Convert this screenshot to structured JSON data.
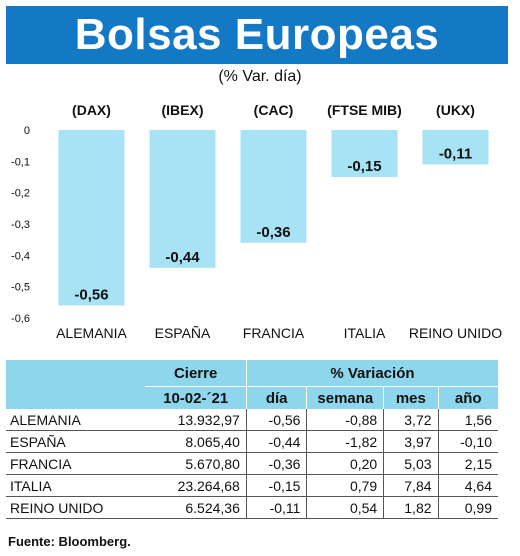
{
  "title": "Bolsas Europeas",
  "subtitle": "(% Var. día)",
  "chart_data": {
    "type": "bar",
    "categories": [
      "ALEMANIA",
      "ESPAÑA",
      "FRANCIA",
      "ITALIA",
      "REINO UNIDO"
    ],
    "index_labels": [
      "(DAX)",
      "(IBEX)",
      "(CAC)",
      "(FTSE MIB)",
      "(UKX)"
    ],
    "values": [
      -0.56,
      -0.44,
      -0.36,
      -0.15,
      -0.11
    ],
    "value_labels": [
      "-0,56",
      "-0,44",
      "-0,36",
      "-0,15",
      "-0,11"
    ],
    "ylim": [
      -0.6,
      0
    ],
    "yticks": [
      0,
      -0.1,
      -0.2,
      -0.3,
      -0.4,
      -0.5,
      -0.6
    ],
    "ytick_labels": [
      "0",
      "-0,1",
      "-0,2",
      "-0,3",
      "-0,4",
      "-0,5",
      "-0,6"
    ],
    "bar_color": "#a7e3f5",
    "grid": false
  },
  "table": {
    "group_header_left": "Cierre",
    "group_header_right": "% Variación",
    "columns": [
      "10-02-´21",
      "día",
      "semana",
      "mes",
      "año"
    ],
    "rows": [
      {
        "name": "ALEMANIA",
        "cierre": "13.932,97",
        "dia": "-0,56",
        "semana": "-0,88",
        "mes": "3,72",
        "anio": "1,56"
      },
      {
        "name": "ESPAÑA",
        "cierre": "8.065,40",
        "dia": "-0,44",
        "semana": "-1,82",
        "mes": "3,97",
        "anio": "-0,10"
      },
      {
        "name": "FRANCIA",
        "cierre": "5.670,80",
        "dia": "-0,36",
        "semana": "0,20",
        "mes": "5,03",
        "anio": "2,15"
      },
      {
        "name": "ITALIA",
        "cierre": "23.264,68",
        "dia": "-0,15",
        "semana": "0,79",
        "mes": "7,84",
        "anio": "4,64"
      },
      {
        "name": "REINO UNIDO",
        "cierre": "6.524,36",
        "dia": "-0,11",
        "semana": "0,54",
        "mes": "1,82",
        "anio": "0,99"
      }
    ],
    "header_color": "#8ed6ec"
  },
  "source": "Fuente: Bloomberg."
}
